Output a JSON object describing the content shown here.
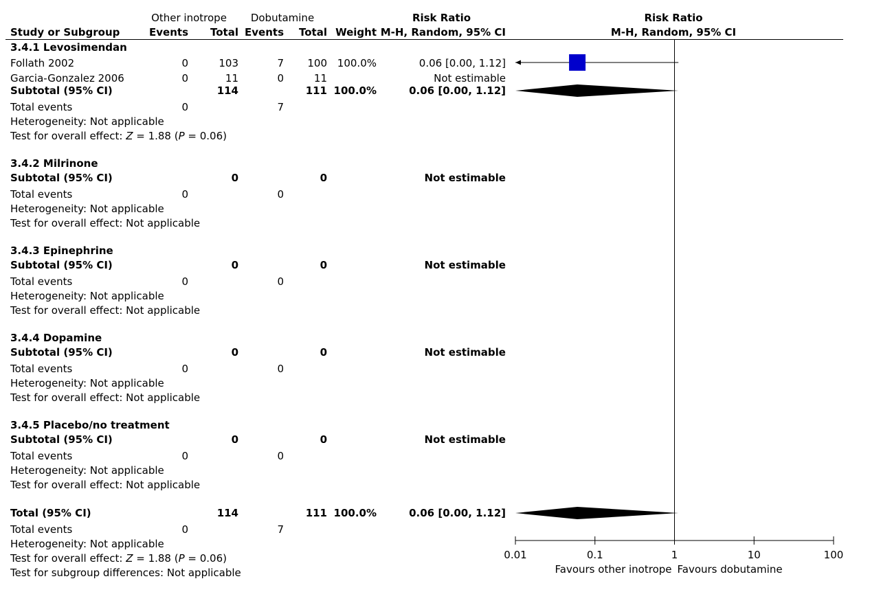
{
  "header": {
    "group1": "Other inotrope",
    "group2": "Dobutamine",
    "effect_title": "Risk Ratio",
    "plot_title": "Risk Ratio",
    "col_study": "Study or Subgroup",
    "col_events1": "Events",
    "col_total1": "Total",
    "col_events2": "Events",
    "col_total2": "Total",
    "col_weight": "Weight",
    "col_method": "M-H, Random, 95% CI",
    "plot_method": "M-H, Random, 95% CI"
  },
  "subgroups": [
    {
      "title": "3.4.1 Levosimendan",
      "studies": [
        {
          "name": "Follath 2002",
          "e1": "0",
          "n1": "103",
          "e2": "7",
          "n2": "100",
          "weight": "100.0%",
          "ci": "0.06 [0.00, 1.12]"
        },
        {
          "name": "Garcia-Gonzalez 2006",
          "e1": "0",
          "n1": "11",
          "e2": "0",
          "n2": "11",
          "weight": "",
          "ci": "Not estimable"
        }
      ],
      "subtotal": {
        "label": "Subtotal (95% CI)",
        "n1": "114",
        "n2": "111",
        "weight": "100.0%",
        "ci": "0.06 [0.00, 1.12]"
      },
      "total_events": {
        "label": "Total events",
        "e1": "0",
        "e2": "7"
      },
      "heterogeneity": "Heterogeneity: Not applicable",
      "overall_prefix": "Test for overall effect: ",
      "overall_z": "Z",
      "overall_mid": " = 1.88 (",
      "overall_p": "P",
      "overall_end": " = 0.06)"
    },
    {
      "title": "3.4.2 Milrinone",
      "subtotal": {
        "label": "Subtotal (95% CI)",
        "n1": "0",
        "n2": "0",
        "ci": "Not estimable"
      },
      "total_events": {
        "label": "Total events",
        "e1": "0",
        "e2": "0"
      },
      "heterogeneity": "Heterogeneity: Not applicable",
      "overall": "Test for overall effect: Not applicable"
    },
    {
      "title": "3.4.3 Epinephrine",
      "subtotal": {
        "label": "Subtotal (95% CI)",
        "n1": "0",
        "n2": "0",
        "ci": "Not estimable"
      },
      "total_events": {
        "label": "Total events",
        "e1": "0",
        "e2": "0"
      },
      "heterogeneity": "Heterogeneity: Not applicable",
      "overall": "Test for overall effect: Not applicable"
    },
    {
      "title": "3.4.4 Dopamine",
      "subtotal": {
        "label": "Subtotal (95% CI)",
        "n1": "0",
        "n2": "0",
        "ci": "Not estimable"
      },
      "total_events": {
        "label": "Total events",
        "e1": "0",
        "e2": "0"
      },
      "heterogeneity": "Heterogeneity: Not applicable",
      "overall": "Test for overall effect: Not applicable"
    },
    {
      "title": "3.4.5 Placebo/no treatment",
      "subtotal": {
        "label": "Subtotal (95% CI)",
        "n1": "0",
        "n2": "0",
        "ci": "Not estimable"
      },
      "total_events": {
        "label": "Total events",
        "e1": "0",
        "e2": "0"
      },
      "heterogeneity": "Heterogeneity: Not applicable",
      "overall": "Test for overall effect: Not applicable"
    }
  ],
  "total": {
    "label": "Total (95% CI)",
    "n1": "114",
    "n2": "111",
    "weight": "100.0%",
    "ci": "0.06 [0.00, 1.12]",
    "events_label": "Total events",
    "e1": "0",
    "e2": "7",
    "heterogeneity": "Heterogeneity: Not applicable",
    "overall_prefix": "Test for overall effect: ",
    "overall_z": "Z",
    "overall_mid": " = 1.88 (",
    "overall_p": "P",
    "overall_end": " = 0.06)",
    "subgroup_diff": "Test for subgroup differences: Not applicable"
  },
  "chart_data": {
    "type": "forest",
    "scale": "log",
    "xlim": [
      0.01,
      100
    ],
    "null_value": 1,
    "ticks": [
      {
        "value": 0.01,
        "label": "0.01"
      },
      {
        "value": 0.1,
        "label": "0.1"
      },
      {
        "value": 1,
        "label": "1"
      },
      {
        "value": 10,
        "label": "10"
      },
      {
        "value": 100,
        "label": "100"
      }
    ],
    "favours_left": "Favours other inotrope",
    "favours_right": "Favours dobutamine",
    "marker_color": "#0000cc",
    "studies": [
      {
        "name": "Follath 2002",
        "estimate": 0.06,
        "lower": 0.003,
        "upper": 1.12,
        "weight": 100.0,
        "row": "follath",
        "arrow_left": true
      }
    ],
    "diamonds": [
      {
        "name": "Subtotal 3.4.1 Levosimendan",
        "estimate": 0.06,
        "lower": 0.003,
        "upper": 1.12,
        "row": "subtotal1"
      },
      {
        "name": "Total (95% CI)",
        "estimate": 0.06,
        "lower": 0.003,
        "upper": 1.12,
        "row": "total"
      }
    ]
  }
}
